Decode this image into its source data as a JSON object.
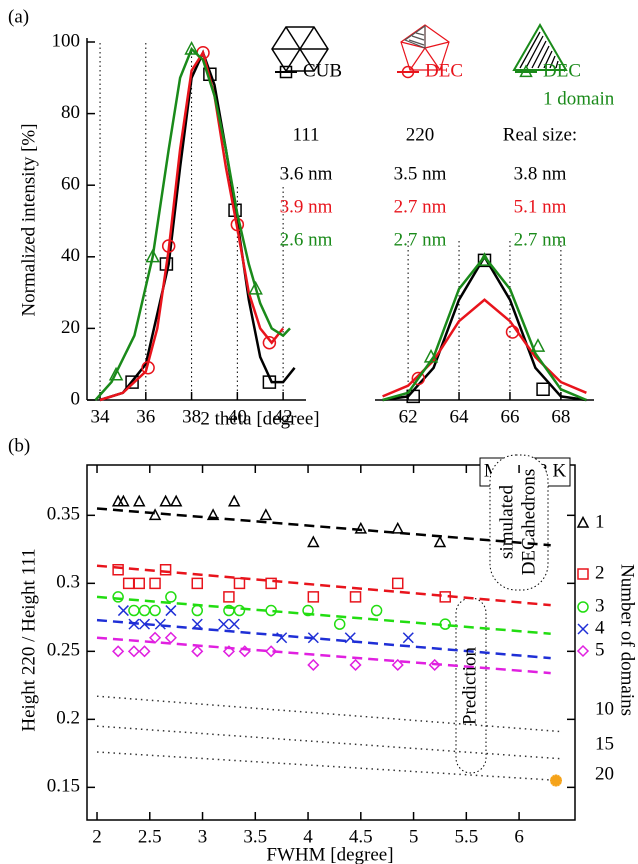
{
  "chart_data": [
    {
      "type": "line",
      "panel_label": "(a)",
      "y_label": "Normalized intensity [%]",
      "x_label": "2 theta [degree]",
      "xlim": [
        [
          33.43,
          43.0
        ],
        [
          60.7,
          69.3
        ]
      ],
      "xticks": [
        [
          34,
          36,
          38,
          40,
          42
        ],
        [
          62,
          64,
          66,
          68
        ]
      ],
      "ylim": [
        0,
        100
      ],
      "yticks": [
        0,
        20,
        40,
        60,
        80,
        100
      ],
      "grid": true,
      "series": [
        {
          "name": "CUB",
          "color": "#000000",
          "marker": "square",
          "curve_x": [
            34,
            35,
            36,
            37,
            37.5,
            38,
            38.5,
            39,
            39.5,
            40,
            40.5,
            41,
            41.5,
            42,
            42.5,
            null,
            61,
            62,
            63,
            64,
            65,
            66,
            67,
            68,
            69
          ],
          "curve_values": [
            0,
            2,
            10,
            38,
            65,
            90,
            97,
            88,
            70,
            50,
            28,
            12,
            5,
            5,
            9,
            null,
            0,
            1,
            9,
            28,
            40,
            28,
            9,
            1,
            0
          ],
          "marker_x": [
            35.4,
            36.9,
            38.8,
            39.9,
            41.4,
            62.2,
            65.0,
            67.3
          ],
          "marker_values": [
            5,
            38,
            91,
            53,
            5,
            1,
            39,
            3
          ]
        },
        {
          "name": "DEC",
          "color": "#e8141c",
          "marker": "circle",
          "curve_x": [
            34,
            35,
            36,
            36.5,
            37,
            37.5,
            38,
            38.5,
            39,
            39.5,
            40,
            40.5,
            41,
            41.5,
            42,
            null,
            61,
            62,
            63,
            64,
            65,
            66,
            67,
            68,
            69
          ],
          "curve_values": [
            0,
            2,
            8,
            20,
            42,
            70,
            92,
            97,
            85,
            65,
            48,
            30,
            20,
            16,
            20,
            null,
            1,
            4,
            11,
            22,
            28,
            22,
            12,
            5,
            2
          ],
          "marker_x": [
            36.1,
            37.0,
            38.5,
            40.0,
            41.4,
            62.4,
            66.1
          ],
          "marker_values": [
            9,
            43,
            97,
            49,
            16,
            6,
            19
          ]
        },
        {
          "name": "DEC",
          "subname": "1 domain",
          "color": "#1a8a1a",
          "marker": "triangle",
          "curve_x": [
            33.8,
            34.5,
            35.5,
            36.3,
            37,
            37.5,
            38,
            38.5,
            39,
            39.5,
            40,
            40.5,
            41,
            41.5,
            42,
            42.3,
            null,
            61,
            62,
            63,
            64,
            65,
            66,
            67,
            68,
            69
          ],
          "curve_values": [
            0,
            5,
            18,
            40,
            70,
            90,
            98,
            95,
            85,
            70,
            52,
            38,
            27,
            20,
            18,
            20,
            null,
            0,
            2,
            12,
            31,
            40,
            31,
            13,
            3,
            0
          ],
          "marker_x": [
            34.7,
            36.3,
            38.0,
            40.8,
            62.9,
            65.0,
            67.1
          ],
          "marker_values": [
            7,
            40,
            98,
            31,
            12,
            39,
            15
          ]
        }
      ],
      "table": {
        "header": [
          "111",
          "220",
          "Real size:"
        ],
        "rows": [
          [
            "3.6 nm",
            "3.5 nm",
            "3.8 nm"
          ],
          [
            "3.9 nm",
            "2.7 nm",
            "5.1 nm"
          ],
          [
            "2.6 nm",
            "2.7 nm",
            "2.7 nm"
          ]
        ]
      }
    },
    {
      "type": "scatter",
      "panel_label": "(b)",
      "inset_label": "MD 293 K",
      "y_label": "Height 220 / Height 111",
      "x_label": "FWHM [degree]",
      "legend_title": "Number of domains",
      "xlim": [
        1.905,
        6.53
      ],
      "xticks": [
        2,
        2.5,
        3,
        3.5,
        4,
        4.5,
        5,
        5.5,
        6
      ],
      "ylim": [
        0.126,
        0.387
      ],
      "yticks": [
        0.15,
        0.2,
        0.25,
        0.3,
        0.35
      ],
      "series": [
        {
          "name": "1",
          "color": "#000000",
          "marker": "triangle",
          "line_style": "dashed",
          "x": [
            2.2,
            2.25,
            2.4,
            2.55,
            2.65,
            2.75,
            3.1,
            3.3,
            3.6,
            4.05,
            4.5,
            4.85,
            5.25
          ],
          "values": [
            0.36,
            0.36,
            0.36,
            0.35,
            0.36,
            0.36,
            0.35,
            0.36,
            0.35,
            0.33,
            0.34,
            0.34,
            0.33
          ],
          "fit_x": [
            2,
            6.3
          ],
          "fit_values": [
            0.355,
            0.328
          ]
        },
        {
          "name": "2",
          "color": "#e8141c",
          "marker": "square",
          "line_style": "dashed",
          "x": [
            2.2,
            2.3,
            2.4,
            2.55,
            2.65,
            2.95,
            3.25,
            3.35,
            3.65,
            4.05,
            4.45,
            4.85,
            5.3
          ],
          "values": [
            0.31,
            0.3,
            0.3,
            0.3,
            0.31,
            0.3,
            0.29,
            0.3,
            0.3,
            0.29,
            0.29,
            0.3,
            0.29
          ],
          "fit_x": [
            2,
            6.3
          ],
          "fit_values": [
            0.313,
            0.284
          ]
        },
        {
          "name": "3",
          "color": "#22dd11",
          "marker": "circle",
          "line_style": "dashed",
          "x": [
            2.2,
            2.35,
            2.45,
            2.55,
            2.7,
            2.95,
            3.25,
            3.35,
            3.65,
            4.0,
            4.3,
            4.65,
            5.3
          ],
          "values": [
            0.29,
            0.28,
            0.28,
            0.28,
            0.29,
            0.28,
            0.28,
            0.28,
            0.28,
            0.28,
            0.27,
            0.28,
            0.27
          ],
          "fit_x": [
            2,
            6.3
          ],
          "fit_values": [
            0.29,
            0.263
          ]
        },
        {
          "name": "4",
          "color": "#1f2fd6",
          "marker": "x",
          "line_style": "dashed",
          "x": [
            2.25,
            2.35,
            2.45,
            2.6,
            2.7,
            2.95,
            3.2,
            3.3,
            3.75,
            4.05,
            4.4,
            4.95
          ],
          "values": [
            0.28,
            0.27,
            0.27,
            0.27,
            0.28,
            0.27,
            0.27,
            0.27,
            0.26,
            0.26,
            0.26,
            0.26
          ],
          "fit_x": [
            2,
            6.3
          ],
          "fit_values": [
            0.273,
            0.245
          ]
        },
        {
          "name": "5",
          "color": "#e020e0",
          "marker": "diamond",
          "line_style": "dashed",
          "x": [
            2.2,
            2.35,
            2.45,
            2.55,
            2.7,
            2.95,
            3.25,
            3.4,
            3.65,
            4.05,
            4.45,
            4.85,
            5.2
          ],
          "values": [
            0.25,
            0.25,
            0.25,
            0.26,
            0.26,
            0.25,
            0.25,
            0.25,
            0.25,
            0.24,
            0.24,
            0.24,
            0.24
          ],
          "fit_x": [
            2,
            6.3
          ],
          "fit_values": [
            0.26,
            0.234
          ]
        },
        {
          "name": "10",
          "color": "#333333",
          "line_style": "dotted",
          "fit_x": [
            2,
            6.4
          ],
          "fit_values": [
            0.217,
            0.191
          ]
        },
        {
          "name": "15",
          "color": "#333333",
          "line_style": "dotted",
          "fit_x": [
            2,
            6.4
          ],
          "fit_values": [
            0.195,
            0.171
          ]
        },
        {
          "name": "20",
          "color": "#333333",
          "line_style": "dotted",
          "fit_x": [
            2,
            6.4
          ],
          "fit_values": [
            0.176,
            0.155
          ]
        }
      ],
      "highlight": {
        "x": 6.35,
        "value": 0.155,
        "color": "#f5a31a",
        "marker": "star"
      },
      "annotations": [
        [
          "simulated",
          "DECahedrons"
        ],
        [
          "Prediction"
        ]
      ]
    }
  ]
}
